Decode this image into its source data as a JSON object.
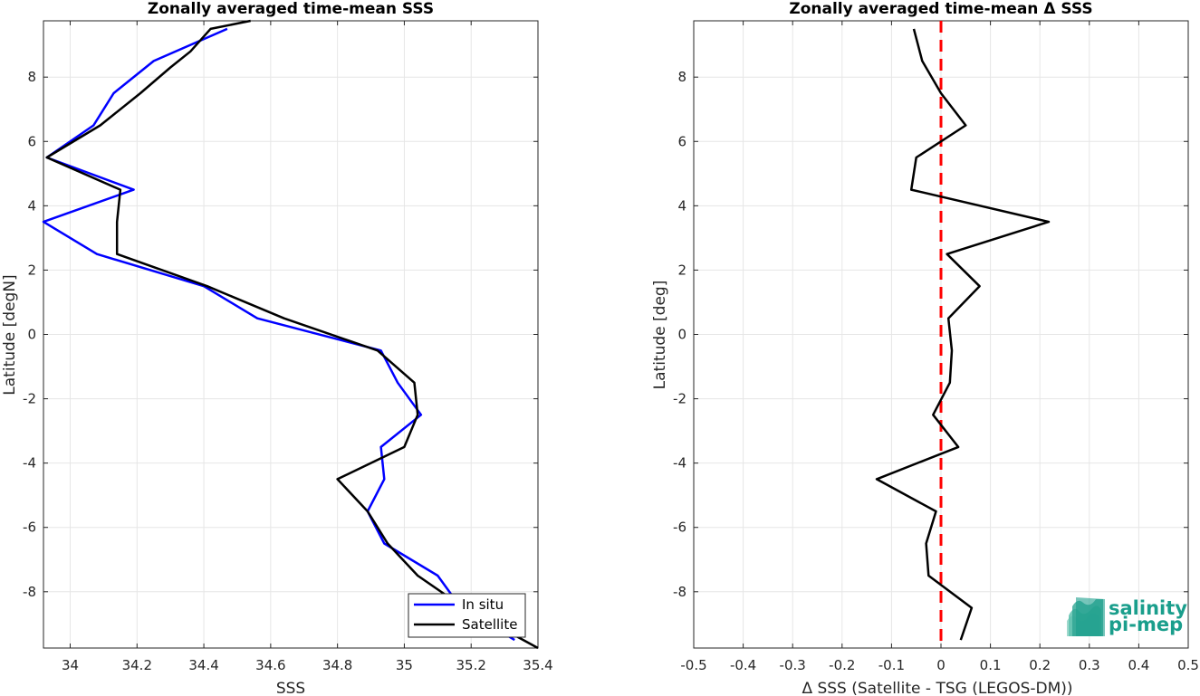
{
  "chart_data": [
    {
      "type": "line",
      "title": "Zonally averaged time-mean SSS",
      "xlabel": "SSS",
      "ylabel": "Latitude [degN]",
      "xlim": [
        33.92,
        35.4
      ],
      "ylim": [
        -9.75,
        9.75
      ],
      "xticks": [
        "34",
        "34.2",
        "34.4",
        "34.6",
        "34.8",
        "35",
        "35.2",
        "35.4"
      ],
      "yticks": [
        "8",
        "6",
        "4",
        "2",
        "0",
        "-2",
        "-4",
        "-6",
        "-8"
      ],
      "grid": true,
      "legend": "bottom-right",
      "series": [
        {
          "name": "In situ",
          "color": "#0000ff",
          "points": [
            [
              34.47,
              9.5
            ],
            [
              34.25,
              8.5
            ],
            [
              34.13,
              7.5
            ],
            [
              34.07,
              6.5
            ],
            [
              33.93,
              5.5
            ],
            [
              34.19,
              4.5
            ],
            [
              33.92,
              3.5
            ],
            [
              34.08,
              2.5
            ],
            [
              34.4,
              1.5
            ],
            [
              34.56,
              0.5
            ],
            [
              34.93,
              -0.5
            ],
            [
              34.98,
              -1.5
            ],
            [
              35.05,
              -2.5
            ],
            [
              34.93,
              -3.5
            ],
            [
              34.94,
              -4.5
            ],
            [
              34.89,
              -5.5
            ],
            [
              34.94,
              -6.5
            ],
            [
              35.1,
              -7.5
            ],
            [
              35.17,
              -8.5
            ],
            [
              35.33,
              -9.5
            ]
          ]
        },
        {
          "name": "Satellite",
          "color": "#000000",
          "points": [
            [
              34.54,
              9.75
            ],
            [
              34.42,
              9.5
            ],
            [
              34.36,
              8.8
            ],
            [
              34.3,
              8.3
            ],
            [
              34.21,
              7.5
            ],
            [
              34.09,
              6.5
            ],
            [
              33.93,
              5.5
            ],
            [
              34.15,
              4.5
            ],
            [
              34.14,
              3.5
            ],
            [
              34.14,
              2.5
            ],
            [
              34.41,
              1.5
            ],
            [
              34.64,
              0.5
            ],
            [
              34.92,
              -0.5
            ],
            [
              35.03,
              -1.5
            ],
            [
              35.04,
              -2.5
            ],
            [
              35.0,
              -3.5
            ],
            [
              34.8,
              -4.5
            ],
            [
              34.89,
              -5.5
            ],
            [
              34.95,
              -6.5
            ],
            [
              35.04,
              -7.5
            ],
            [
              35.18,
              -8.5
            ],
            [
              35.4,
              -9.75
            ]
          ]
        }
      ]
    },
    {
      "type": "line",
      "title": "Zonally averaged time-mean Δ SSS",
      "xlabel": "Δ SSS (Satellite - TSG (LEGOS-DM))",
      "ylabel": "Latitude [deg]",
      "xlim": [
        -0.5,
        0.5
      ],
      "ylim": [
        -9.75,
        9.75
      ],
      "xticks": [
        "-0.5",
        "-0.4",
        "-0.3",
        "-0.2",
        "-0.1",
        "0",
        "0.1",
        "0.2",
        "0.3",
        "0.4",
        "0.5"
      ],
      "yticks": [
        "8",
        "6",
        "4",
        "2",
        "0",
        "-2",
        "-4",
        "-6",
        "-8"
      ],
      "grid": true,
      "reference_line": {
        "x": 0,
        "color": "#ff0000",
        "style": "dashed"
      },
      "series": [
        {
          "color": "#000000",
          "points": [
            [
              -0.055,
              9.5
            ],
            [
              -0.038,
              8.5
            ],
            [
              0.0,
              7.5
            ],
            [
              0.05,
              6.5
            ],
            [
              -0.05,
              5.5
            ],
            [
              -0.06,
              4.5
            ],
            [
              0.218,
              3.5
            ],
            [
              0.012,
              2.5
            ],
            [
              0.078,
              1.5
            ],
            [
              0.015,
              0.5
            ],
            [
              0.022,
              -0.5
            ],
            [
              0.018,
              -1.5
            ],
            [
              -0.016,
              -2.5
            ],
            [
              0.035,
              -3.5
            ],
            [
              -0.13,
              -4.5
            ],
            [
              -0.01,
              -5.5
            ],
            [
              -0.03,
              -6.5
            ],
            [
              -0.025,
              -7.5
            ],
            [
              0.062,
              -8.5
            ],
            [
              0.04,
              -9.5
            ]
          ]
        }
      ]
    }
  ],
  "logo": {
    "line1": "salinity",
    "line2": "pi-mep",
    "color": "#1a9e8c"
  }
}
